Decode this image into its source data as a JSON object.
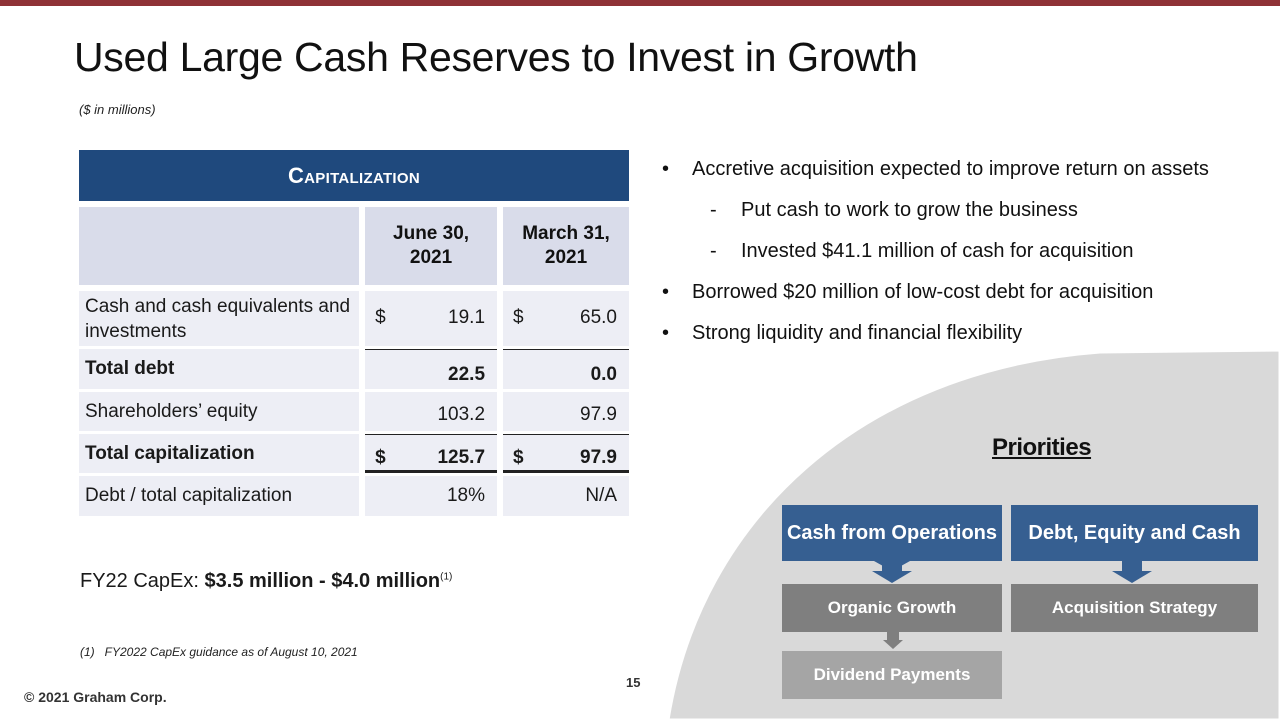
{
  "slide": {
    "title": "Used Large Cash Reserves to Invest in Growth",
    "units_note": "($ in millions)",
    "page_number": "15",
    "copyright": "© 2021 Graham Corp."
  },
  "table": {
    "header": "Capitalization",
    "col1": "June 30,\n2021",
    "col2": "March 31,\n2021",
    "rows": [
      {
        "label": "Cash and cash equivalents and investments",
        "cur1": "$",
        "v1": "19.1",
        "cur2": "$",
        "v2": "65.0"
      },
      {
        "label": "Total debt",
        "cur1": "",
        "v1": "22.5",
        "cur2": "",
        "v2": "0.0"
      },
      {
        "label": "Shareholders’ equity",
        "cur1": "",
        "v1": "103.2",
        "cur2": "",
        "v2": "97.9"
      },
      {
        "label": "Total capitalization",
        "cur1": "$",
        "v1": "125.7",
        "cur2": "$",
        "v2": "97.9"
      },
      {
        "label": "Debt / total capitalization",
        "cur1": "",
        "v1": "18%",
        "cur2": "",
        "v2": "N/A"
      }
    ]
  },
  "capex": {
    "label": "FY22 CapEx: ",
    "value": "$3.5 million - $4.0 million",
    "footnote_ref": "(1)"
  },
  "footnote": "(1)   FY2022 CapEx guidance as of August 10, 2021",
  "bullets": [
    {
      "level": 1,
      "text": "Accretive acquisition expected to improve return on assets"
    },
    {
      "level": 2,
      "text": "Put cash to work to grow the business"
    },
    {
      "level": 2,
      "text": "Invested $41.1 million of cash for acquisition"
    },
    {
      "level": 1,
      "text": "Borrowed $20 million of low-cost debt for acquisition"
    },
    {
      "level": 1,
      "text": "Strong liquidity and financial flexibility"
    }
  ],
  "priorities": {
    "title": "Priorities",
    "cash_from_operations": "Cash from Operations",
    "debt_equity_cash": "Debt, Equity and Cash",
    "organic_growth": "Organic Growth",
    "acquisition_strategy": "Acquisition Strategy",
    "dividend_payments": "Dividend Payments"
  },
  "colors": {
    "accent_bar": "#8f3236",
    "table_header": "#1f497d",
    "priority_blue": "#365f91",
    "priority_grey": "#7f7f7f",
    "panel_grey": "#d9d9d9"
  }
}
